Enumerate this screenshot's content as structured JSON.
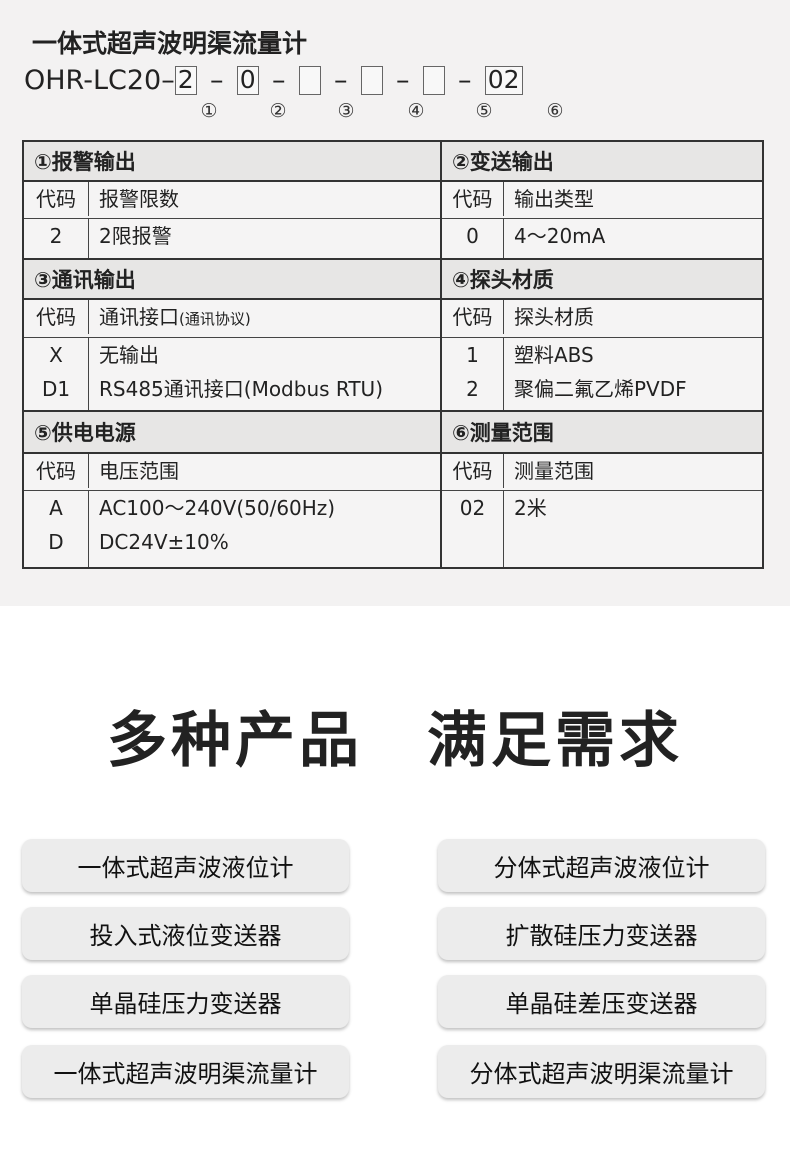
{
  "header": {
    "title": "一体式超声波明渠流量计",
    "prefix": "OHR-LC20–",
    "slots": [
      "2",
      "0",
      "",
      "",
      "",
      "02"
    ],
    "dash": "–",
    "markers": [
      "①",
      "②",
      "③",
      "④",
      "⑤",
      "⑥"
    ]
  },
  "table": {
    "s1": {
      "title": "①报警输出",
      "code": "代码",
      "head": "报警限数",
      "rows": [
        [
          "2",
          "2限报警"
        ]
      ]
    },
    "s2": {
      "title": "②变送输出",
      "code": "代码",
      "head": "输出类型",
      "rows": [
        [
          "0",
          "4～20mA"
        ]
      ]
    },
    "s3": {
      "title": "③通讯输出",
      "code": "代码",
      "head": "通讯接口",
      "head_note": "(通讯协议)",
      "rows": [
        [
          "X",
          "无输出"
        ],
        [
          "D1",
          "RS485通讯接口(Modbus RTU)"
        ]
      ]
    },
    "s4": {
      "title": "④探头材质",
      "code": "代码",
      "head": "探头材质",
      "rows": [
        [
          "1",
          "塑料ABS"
        ],
        [
          "2",
          "聚偏二氟乙烯PVDF"
        ]
      ]
    },
    "s5": {
      "title": "⑤供电电源",
      "code": "代码",
      "head": "电压范围",
      "rows": [
        [
          "A",
          "AC100～240V(50/60Hz)"
        ],
        [
          "D",
          "DC24V±10%"
        ]
      ]
    },
    "s6": {
      "title": "⑥测量范围",
      "code": "代码",
      "head": "测量范围",
      "rows": [
        [
          "02",
          "2米"
        ]
      ]
    }
  },
  "slogan": "多种产品　满足需求",
  "products": [
    "一体式超声波液位计",
    "分体式超声波液位计",
    "投入式液位变送器",
    "扩散硅压力变送器",
    "单晶硅压力变送器",
    "单晶硅差压变送器",
    "一体式超声波明渠流量计",
    "分体式超声波明渠流量计"
  ]
}
